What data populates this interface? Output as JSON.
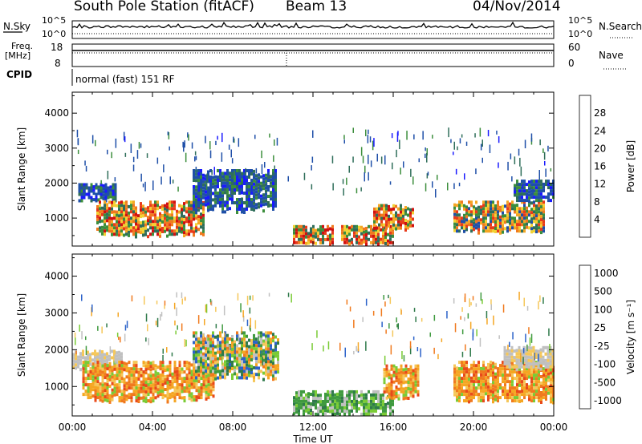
{
  "header": {
    "station": "South Pole Station (fitACF)",
    "beam": "Beam 13",
    "date": "04/Nov/2014"
  },
  "sky_panel": {
    "left_label": "N.Sky",
    "right_label": "N.Search",
    "left_ticks": [
      "10^5",
      "10^0"
    ],
    "right_ticks": [
      "10^5",
      "10^0"
    ]
  },
  "freq_panel": {
    "label_line1": "Freq.",
    "label_line2": "[MHz]",
    "left_ticks": [
      "18",
      "8"
    ],
    "right_label": "Nave",
    "right_ticks": [
      "60",
      "0"
    ]
  },
  "cpid": {
    "label": "CPID",
    "value": "normal (fast) 151 RF"
  },
  "x_axis": {
    "label": "Time UT",
    "ticks": [
      "00:00",
      "04:00",
      "08:00",
      "12:00",
      "16:00",
      "20:00",
      "00:00"
    ]
  },
  "chart_data": [
    {
      "type": "heatmap",
      "panel": "power",
      "xlabel": "Time UT",
      "ylabel": "Slant Range [km]",
      "y_ticks": [
        1000,
        2000,
        3000,
        4000
      ],
      "ylim": [
        200,
        4600
      ],
      "xlim_hours": [
        0,
        24
      ],
      "colorbar": {
        "label": "Power [dB]",
        "ticks": [
          "4",
          "8",
          "12",
          "16",
          "20",
          "24",
          "28"
        ],
        "colors": [
          "#1a1aff",
          "#1f4fa8",
          "#2f6e5a",
          "#3c8e3c",
          "#9acb3a",
          "#f2d233",
          "#f5a623",
          "#f07a1e",
          "#e83a1a",
          "#d01010"
        ]
      },
      "echo_regions": [
        {
          "t_start": 0.3,
          "t_end": 2.2,
          "r_low": 1500,
          "r_high": 2000,
          "level": "low"
        },
        {
          "t_start": 1.2,
          "t_end": 6.5,
          "r_low": 500,
          "r_high": 1500,
          "level": "high"
        },
        {
          "t_start": 6.0,
          "t_end": 10.2,
          "r_low": 1200,
          "r_high": 2400,
          "level": "low"
        },
        {
          "t_start": 11.0,
          "t_end": 13.0,
          "r_low": 250,
          "r_high": 800,
          "level": "high"
        },
        {
          "t_start": 13.4,
          "t_end": 16.0,
          "r_low": 250,
          "r_high": 800,
          "level": "high"
        },
        {
          "t_start": 15.0,
          "t_end": 17.0,
          "r_low": 700,
          "r_high": 1400,
          "level": "high"
        },
        {
          "t_start": 19.0,
          "t_end": 23.5,
          "r_low": 600,
          "r_high": 1500,
          "level": "mid"
        },
        {
          "t_start": 22.0,
          "t_end": 24.0,
          "r_low": 1500,
          "r_high": 2100,
          "level": "low"
        }
      ]
    },
    {
      "type": "heatmap",
      "panel": "velocity",
      "xlabel": "Time UT",
      "ylabel": "Slant Range [km]",
      "y_ticks": [
        1000,
        2000,
        3000,
        4000
      ],
      "ylim": [
        200,
        4600
      ],
      "xlim_hours": [
        0,
        24
      ],
      "colorbar": {
        "label": "Velocity [m s⁻¹]",
        "ticks": [
          "1000",
          "500",
          "100",
          "25",
          "-25",
          "-100",
          "-500",
          "-1000"
        ],
        "colors": [
          "#1c3fbf",
          "#2b62c9",
          "#2f7a4a",
          "#3f9a3f",
          "#7acb35",
          "#c0c0c0",
          "#f5c75a",
          "#f5a623",
          "#f07a1e",
          "#e84a1a",
          "#d81010"
        ]
      },
      "echo_regions": [
        {
          "t_start": 0.0,
          "t_end": 2.5,
          "r_low": 1500,
          "r_high": 2000,
          "level": "gray"
        },
        {
          "t_start": 0.5,
          "t_end": 7.0,
          "r_low": 600,
          "r_high": 1700,
          "level": "orange"
        },
        {
          "t_start": 6.0,
          "t_end": 10.3,
          "r_low": 1200,
          "r_high": 2500,
          "level": "mixed"
        },
        {
          "t_start": 11.0,
          "t_end": 16.0,
          "r_low": 250,
          "r_high": 900,
          "level": "green"
        },
        {
          "t_start": 15.5,
          "t_end": 17.2,
          "r_low": 700,
          "r_high": 1600,
          "level": "orange"
        },
        {
          "t_start": 19.0,
          "t_end": 24.0,
          "r_low": 600,
          "r_high": 1700,
          "level": "orange"
        },
        {
          "t_start": 21.5,
          "t_end": 24.0,
          "r_low": 1500,
          "r_high": 2100,
          "level": "gray"
        }
      ]
    }
  ]
}
